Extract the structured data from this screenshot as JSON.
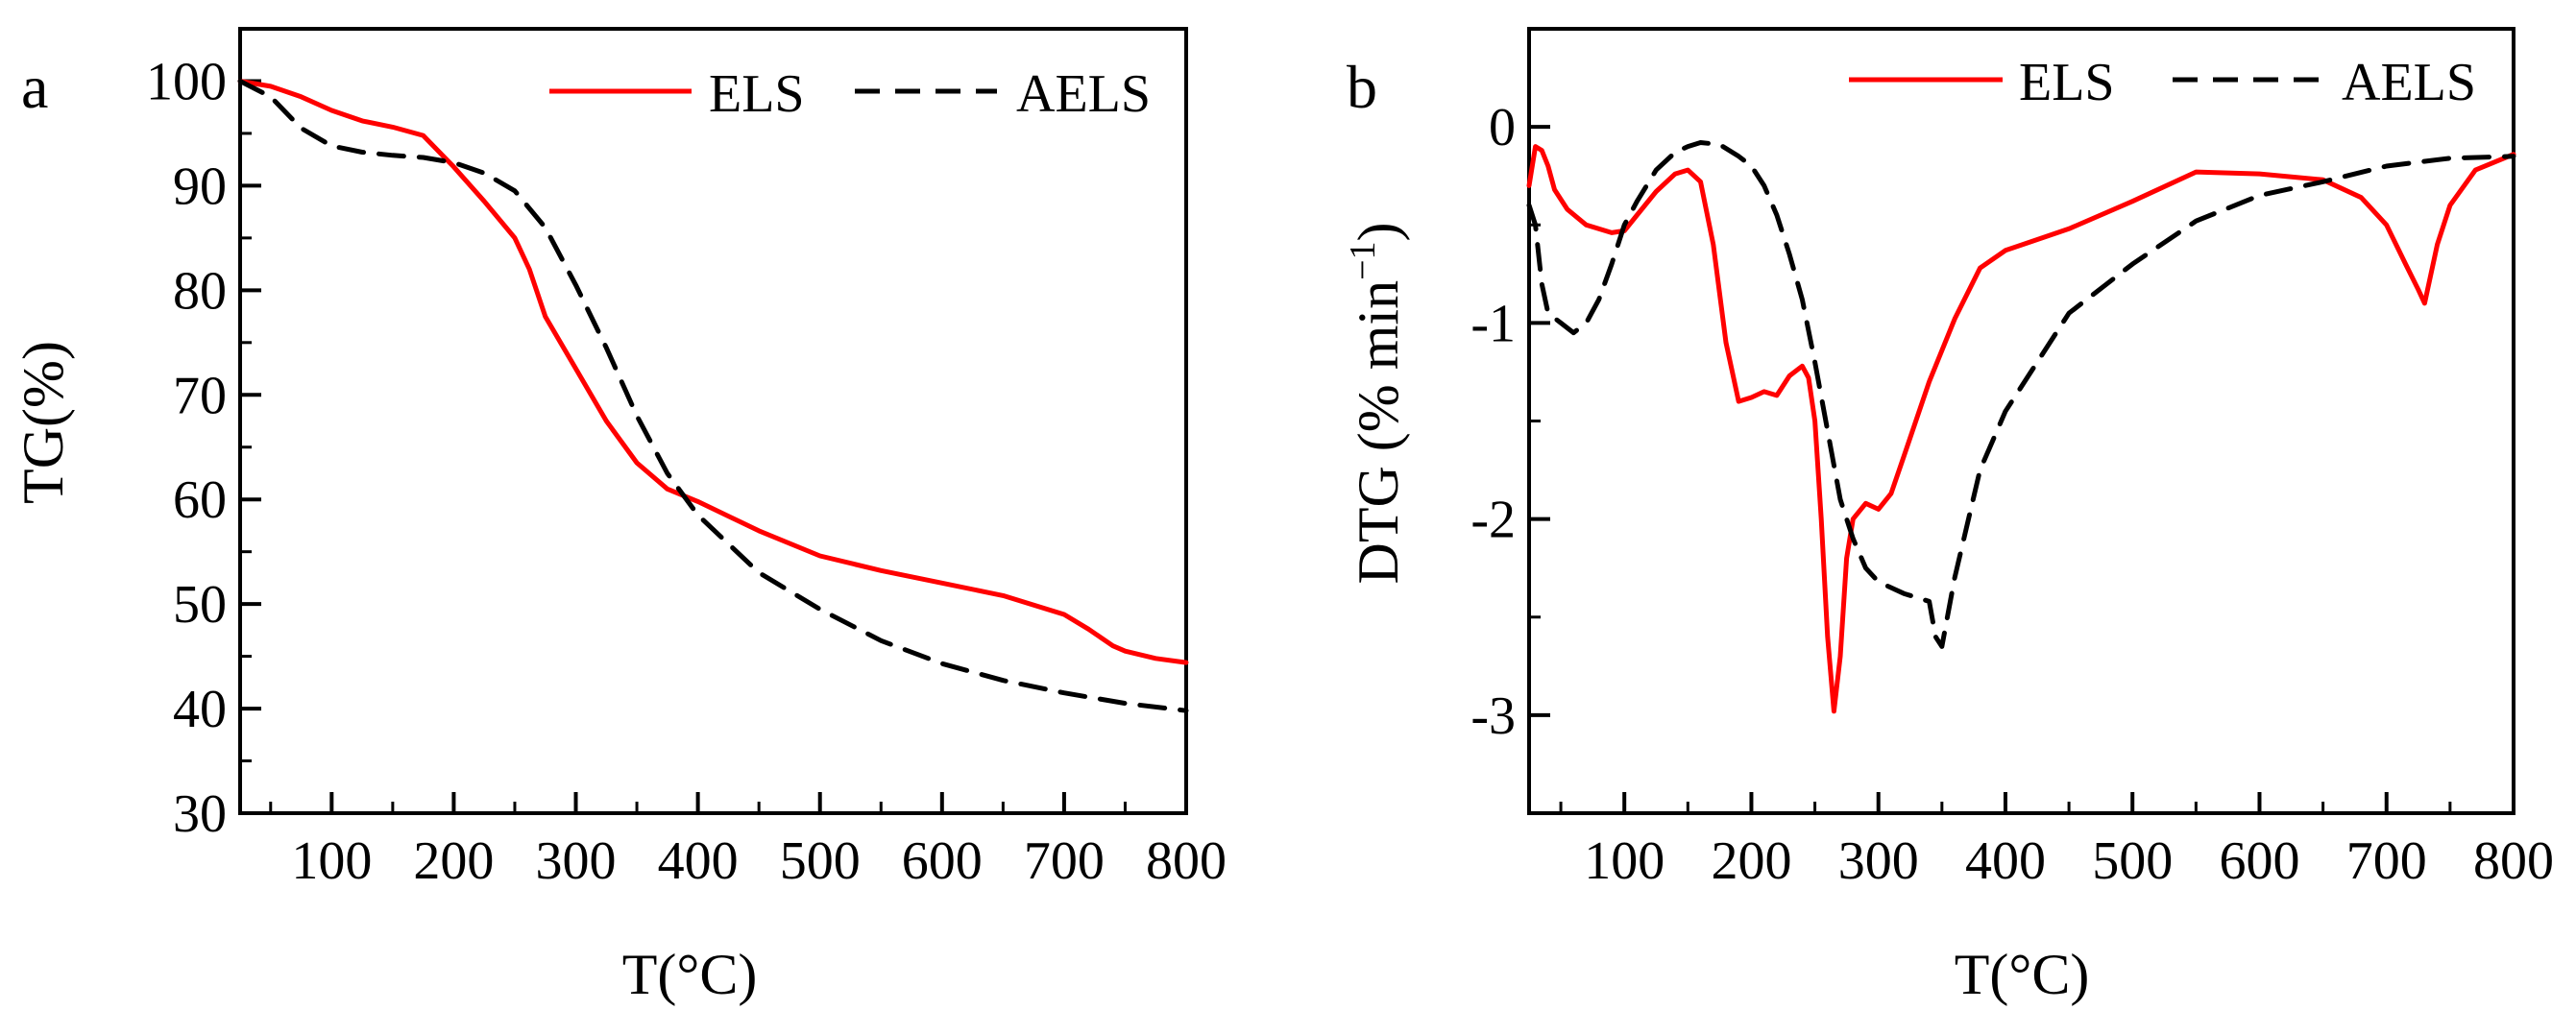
{
  "chart_data": [
    {
      "panel": "a",
      "type": "line",
      "xlabel": "T(°C)",
      "ylabel": "TG(%)",
      "xlim": [
        25,
        800
      ],
      "ylim": [
        30,
        105
      ],
      "xticks": [
        100,
        200,
        300,
        400,
        500,
        600,
        700,
        800
      ],
      "yticks": [
        30,
        40,
        50,
        60,
        70,
        80,
        90,
        100
      ],
      "legend_position": "top-right",
      "series": [
        {
          "name": "ELS",
          "color": "#ff0000",
          "dash": "solid",
          "x": [
            25,
            50,
            75,
            100,
            125,
            150,
            175,
            190,
            200,
            225,
            250,
            262,
            275,
            300,
            325,
            350,
            375,
            400,
            450,
            500,
            550,
            600,
            650,
            700,
            720,
            740,
            750,
            775,
            800
          ],
          "y": [
            100,
            99.5,
            98.5,
            97.2,
            96.2,
            95.6,
            94.8,
            93.0,
            91.8,
            88.5,
            85.0,
            82.0,
            77.5,
            72.5,
            67.5,
            63.5,
            61.0,
            59.8,
            57.0,
            54.6,
            53.2,
            52.0,
            50.8,
            49.0,
            47.6,
            46.0,
            45.5,
            44.8,
            44.4
          ]
        },
        {
          "name": "AELS",
          "color": "#000000",
          "dash": "dashed",
          "x": [
            25,
            50,
            75,
            100,
            125,
            150,
            175,
            200,
            225,
            250,
            275,
            300,
            325,
            350,
            375,
            400,
            450,
            500,
            550,
            600,
            650,
            700,
            750,
            800
          ],
          "y": [
            100,
            98.5,
            95.5,
            93.8,
            93.2,
            92.9,
            92.7,
            92.2,
            91.2,
            89.5,
            86.0,
            80.5,
            74.5,
            68.0,
            62.5,
            58.5,
            53.0,
            49.5,
            46.5,
            44.3,
            42.7,
            41.5,
            40.5,
            39.8
          ]
        }
      ],
      "legend": [
        {
          "label": "ELS"
        },
        {
          "label": "AELS"
        }
      ]
    },
    {
      "panel": "b",
      "type": "line",
      "xlabel": "T(°C)",
      "ylabel": "DTG (% min",
      "ylabel_sup": "−1",
      "ylabel_close": ")",
      "xlim": [
        25,
        800
      ],
      "ylim": [
        -3.5,
        0.5
      ],
      "xticks": [
        100,
        200,
        300,
        400,
        500,
        600,
        700,
        800
      ],
      "yticks": [
        -3,
        -2,
        -1,
        0
      ],
      "ytick_labels": [
        "-3",
        "-2",
        "-1",
        "0"
      ],
      "legend_position": "top-right",
      "series": [
        {
          "name": "ELS",
          "color": "#ff0000",
          "dash": "solid",
          "x": [
            25,
            30,
            35,
            40,
            45,
            55,
            70,
            90,
            100,
            110,
            125,
            140,
            150,
            160,
            170,
            180,
            190,
            200,
            210,
            220,
            230,
            240,
            245,
            250,
            255,
            260,
            265,
            270,
            275,
            280,
            290,
            300,
            310,
            320,
            340,
            360,
            380,
            400,
            450,
            500,
            550,
            600,
            650,
            680,
            700,
            715,
            725,
            730,
            740,
            750,
            770,
            800
          ],
          "y": [
            -0.3,
            -0.1,
            -0.12,
            -0.2,
            -0.32,
            -0.42,
            -0.5,
            -0.54,
            -0.53,
            -0.45,
            -0.33,
            -0.24,
            -0.22,
            -0.28,
            -0.6,
            -1.1,
            -1.4,
            -1.38,
            -1.35,
            -1.37,
            -1.27,
            -1.22,
            -1.28,
            -1.5,
            -2.0,
            -2.6,
            -2.98,
            -2.7,
            -2.2,
            -2.0,
            -1.92,
            -1.95,
            -1.87,
            -1.68,
            -1.3,
            -0.98,
            -0.72,
            -0.63,
            -0.52,
            -0.38,
            -0.23,
            -0.24,
            -0.27,
            -0.36,
            -0.5,
            -0.7,
            -0.83,
            -0.9,
            -0.6,
            -0.4,
            -0.22,
            -0.14
          ]
        },
        {
          "name": "AELS",
          "color": "#000000",
          "dash": "dashed",
          "x": [
            25,
            30,
            35,
            40,
            50,
            60,
            70,
            80,
            90,
            100,
            110,
            125,
            140,
            150,
            160,
            175,
            190,
            200,
            210,
            220,
            230,
            240,
            250,
            260,
            270,
            280,
            290,
            300,
            320,
            340,
            345,
            350,
            360,
            380,
            400,
            450,
            500,
            550,
            600,
            650,
            700,
            750,
            800
          ],
          "y": [
            -0.4,
            -0.5,
            -0.8,
            -0.95,
            -1.0,
            -1.05,
            -1.0,
            -0.88,
            -0.7,
            -0.5,
            -0.38,
            -0.22,
            -0.13,
            -0.1,
            -0.08,
            -0.09,
            -0.15,
            -0.2,
            -0.3,
            -0.45,
            -0.65,
            -0.88,
            -1.2,
            -1.55,
            -1.9,
            -2.1,
            -2.25,
            -2.32,
            -2.38,
            -2.42,
            -2.6,
            -2.65,
            -2.3,
            -1.75,
            -1.45,
            -0.95,
            -0.7,
            -0.48,
            -0.35,
            -0.28,
            -0.2,
            -0.16,
            -0.15
          ]
        }
      ],
      "legend": [
        {
          "label": "ELS"
        },
        {
          "label": "AELS"
        }
      ]
    }
  ]
}
